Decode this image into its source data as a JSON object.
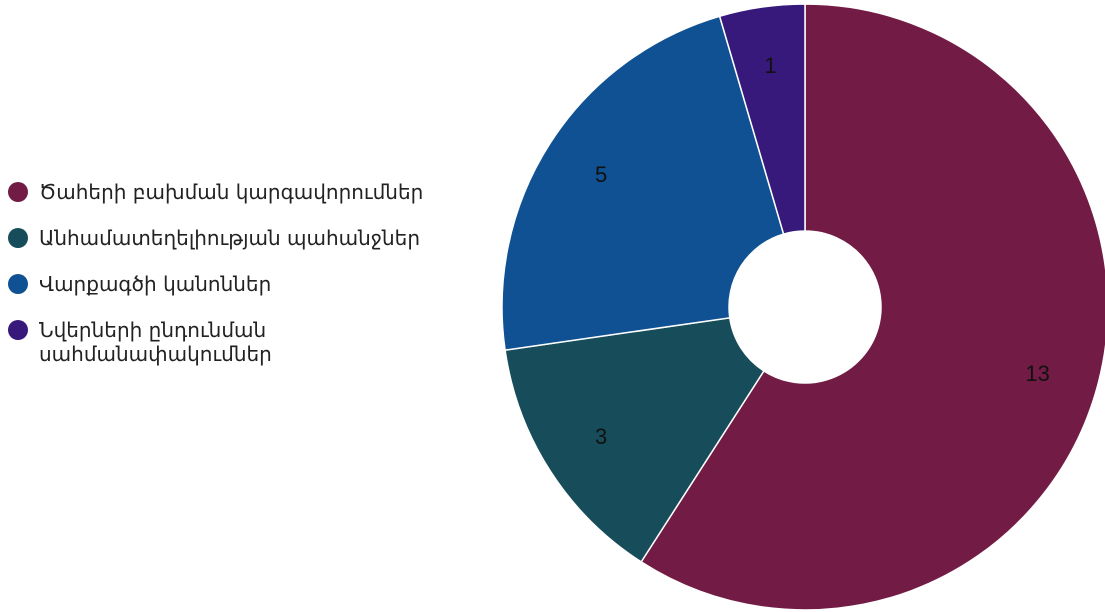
{
  "chart_data": {
    "type": "pie",
    "donut": true,
    "legend_position": "left",
    "title": "",
    "series": [
      {
        "name": "Ծաhերի բախման կարգավորումներ",
        "value": 13,
        "color": "#721c45"
      },
      {
        "name": "Անհամատեղելիության պահանջներ",
        "value": 3,
        "color": "#174c5a"
      },
      {
        "name": "Վարքագծի կանոններ",
        "value": 5,
        "color": "#0f5192"
      },
      {
        "name": "Նվերների ընդունման\nսահմանափակումներ",
        "value": 1,
        "color": "#36197a"
      }
    ]
  }
}
